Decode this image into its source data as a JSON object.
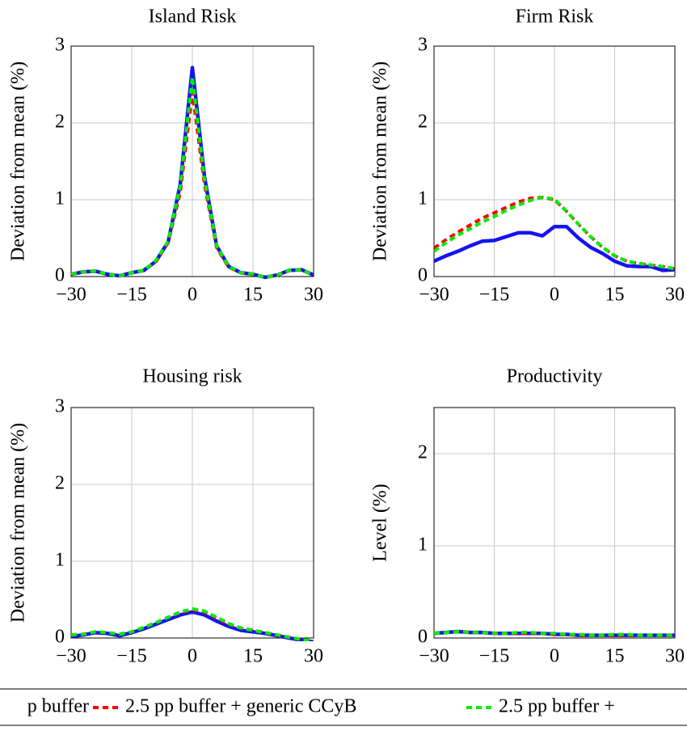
{
  "chart_data": [
    {
      "type": "line",
      "title": "Island Risk",
      "ylabel": "Deviation from mean (%)",
      "x": [
        -30,
        -27,
        -24,
        -21,
        -18,
        -15,
        -12,
        -9,
        -6,
        -3,
        0,
        3,
        6,
        9,
        12,
        15,
        18,
        21,
        24,
        27,
        30
      ],
      "xlim": [
        -30,
        30
      ],
      "ylim": [
        0,
        3
      ],
      "yticks": [
        0,
        1,
        2,
        3
      ],
      "grid": true,
      "xticks": [
        {
          "value": -30,
          "label": "−30"
        },
        {
          "value": -15,
          "label": "−15"
        },
        0,
        15,
        30
      ],
      "series": [
        {
          "name": "p buffer",
          "color": "#1414f0",
          "values": [
            0.03,
            0.06,
            0.07,
            0.03,
            0.01,
            0.05,
            0.08,
            0.2,
            0.45,
            1.2,
            2.72,
            1.3,
            0.4,
            0.13,
            0.05,
            0.03,
            -0.01,
            0.02,
            0.08,
            0.09,
            0.02
          ]
        },
        {
          "name": "2.5 pp buffer + generic CCyB",
          "color": "#ff0000",
          "values": [
            0.03,
            0.06,
            0.07,
            0.03,
            0.01,
            0.05,
            0.08,
            0.2,
            0.44,
            1.1,
            2.4,
            1.2,
            0.38,
            0.12,
            0.05,
            0.03,
            -0.01,
            0.02,
            0.08,
            0.09,
            0.02
          ]
        },
        {
          "name": "2.5 pp buffer +",
          "color": "#00ee00",
          "values": [
            0.03,
            0.06,
            0.07,
            0.03,
            0.01,
            0.05,
            0.08,
            0.21,
            0.46,
            1.18,
            2.6,
            1.26,
            0.4,
            0.13,
            0.05,
            0.03,
            -0.01,
            0.02,
            0.08,
            0.09,
            0.02
          ]
        }
      ]
    },
    {
      "type": "line",
      "title": "Firm Risk",
      "ylabel": "Deviation from mean (%)",
      "x": [
        -30,
        -27,
        -24,
        -21,
        -18,
        -15,
        -12,
        -9,
        -6,
        -3,
        0,
        3,
        6,
        9,
        12,
        15,
        18,
        21,
        24,
        27,
        30
      ],
      "xlim": [
        -30,
        30
      ],
      "ylim": [
        0,
        3
      ],
      "yticks": [
        0,
        1,
        2,
        3
      ],
      "grid": true,
      "xticks": [
        {
          "value": -30,
          "label": "−30"
        },
        {
          "value": -15,
          "label": "−15"
        },
        0,
        15,
        30
      ],
      "series": [
        {
          "color": "#1414f0",
          "values": [
            0.2,
            0.27,
            0.33,
            0.4,
            0.46,
            0.47,
            0.52,
            0.57,
            0.57,
            0.53,
            0.65,
            0.65,
            0.5,
            0.38,
            0.3,
            0.2,
            0.14,
            0.13,
            0.13,
            0.08,
            0.09
          ]
        },
        {
          "color": "#ff0000",
          "values": [
            0.37,
            0.48,
            0.58,
            0.67,
            0.76,
            0.83,
            0.9,
            0.97,
            1.02,
            1.03,
            1.0,
            0.85,
            0.68,
            0.52,
            0.38,
            0.27,
            0.2,
            0.17,
            0.15,
            0.13,
            0.1
          ]
        },
        {
          "color": "#00ee00",
          "values": [
            0.33,
            0.44,
            0.54,
            0.62,
            0.71,
            0.78,
            0.86,
            0.93,
            0.99,
            1.03,
            1.01,
            0.85,
            0.68,
            0.52,
            0.38,
            0.27,
            0.2,
            0.17,
            0.15,
            0.13,
            0.1
          ]
        }
      ]
    },
    {
      "type": "line",
      "title": "Housing risk",
      "ylabel": "Deviation from mean (%)",
      "x": [
        -30,
        -27,
        -24,
        -21,
        -18,
        -15,
        -12,
        -9,
        -6,
        -3,
        0,
        3,
        6,
        9,
        12,
        15,
        18,
        21,
        24,
        27,
        30
      ],
      "xlim": [
        -30,
        30
      ],
      "ylim": [
        0,
        3
      ],
      "yticks": [
        0,
        1,
        2,
        3
      ],
      "grid": true,
      "xticks": [
        {
          "value": -30,
          "label": "−30"
        },
        {
          "value": -15,
          "label": "−15"
        },
        0,
        15,
        30
      ],
      "series": [
        {
          "color": "#1414f0",
          "values": [
            0.02,
            0.04,
            0.07,
            0.06,
            0.03,
            0.07,
            0.12,
            0.18,
            0.24,
            0.3,
            0.34,
            0.3,
            0.22,
            0.15,
            0.1,
            0.08,
            0.06,
            0.03,
            0.0,
            -0.03,
            -0.05
          ]
        },
        {
          "color": "#ff0000",
          "values": [
            0.04,
            0.05,
            0.08,
            0.07,
            0.05,
            0.08,
            0.14,
            0.2,
            0.27,
            0.33,
            0.37,
            0.34,
            0.26,
            0.18,
            0.13,
            0.1,
            0.07,
            0.04,
            0.01,
            -0.02,
            -0.04
          ]
        },
        {
          "color": "#00ee00",
          "values": [
            0.04,
            0.05,
            0.08,
            0.07,
            0.05,
            0.08,
            0.14,
            0.2,
            0.27,
            0.34,
            0.38,
            0.35,
            0.27,
            0.19,
            0.13,
            0.1,
            0.07,
            0.04,
            0.01,
            -0.02,
            -0.04
          ]
        }
      ]
    },
    {
      "type": "line",
      "title": "Productivity",
      "ylabel": "Level (%)",
      "x": [
        -30,
        -27,
        -24,
        -21,
        -18,
        -15,
        -12,
        -9,
        -6,
        -3,
        0,
        3,
        6,
        9,
        12,
        15,
        18,
        21,
        24,
        27,
        30
      ],
      "xlim": [
        -30,
        30
      ],
      "ylim": [
        0,
        2.5
      ],
      "yticks": [
        0,
        1,
        2
      ],
      "grid": true,
      "xticks": [
        {
          "value": -30,
          "label": "−30"
        },
        {
          "value": -15,
          "label": "−15"
        },
        0,
        15,
        30
      ],
      "series": [
        {
          "color": "#1414f0",
          "values": [
            0.05,
            0.06,
            0.07,
            0.06,
            0.06,
            0.05,
            0.05,
            0.05,
            0.05,
            0.05,
            0.04,
            0.04,
            0.03,
            0.03,
            0.03,
            0.03,
            0.03,
            0.03,
            0.03,
            0.03,
            0.03
          ]
        },
        {
          "color": "#ff0000",
          "values": [
            0.05,
            0.06,
            0.07,
            0.06,
            0.06,
            0.05,
            0.05,
            0.05,
            0.05,
            0.05,
            0.04,
            0.04,
            0.03,
            0.03,
            0.03,
            0.03,
            0.03,
            0.03,
            0.03,
            0.03,
            0.03
          ]
        },
        {
          "color": "#00ee00",
          "values": [
            0.05,
            0.06,
            0.07,
            0.06,
            0.06,
            0.05,
            0.05,
            0.06,
            0.06,
            0.05,
            0.05,
            0.04,
            0.04,
            0.03,
            0.03,
            0.04,
            0.04,
            0.03,
            0.03,
            0.03,
            0.03
          ]
        }
      ]
    }
  ]
}
